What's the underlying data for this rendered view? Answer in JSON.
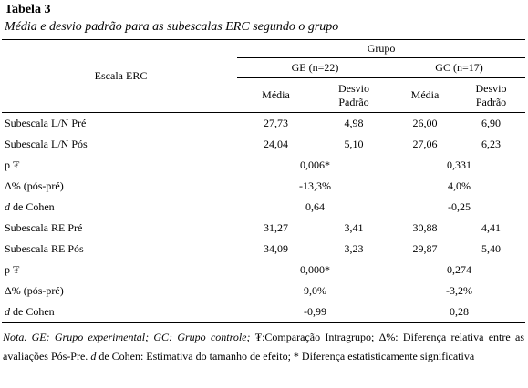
{
  "title": "Tabela 3",
  "subtitle": "Média e desvio padrão para as subescalas ERC segundo o grupo",
  "header": {
    "scale": "Escala ERC",
    "group": "Grupo",
    "ge": "GE (n=22)",
    "gc": "GC (n=17)",
    "mean": "Média",
    "sd": "Desvio Padrão"
  },
  "rows": [
    {
      "label": "Subescala L/N Pré",
      "cells": [
        "27,73",
        "4,98",
        "26,00",
        "6,90"
      ]
    },
    {
      "label": "Subescala L/N Pós",
      "cells": [
        "24,04",
        "5,10",
        "27,06",
        "6,23"
      ]
    },
    {
      "label": "p ₮",
      "merged": [
        "0,006*",
        "0,331"
      ]
    },
    {
      "label": "Δ% (pós-pré)",
      "merged": [
        "-13,3%",
        "4,0%"
      ]
    },
    {
      "label_italic": "d",
      "label": "de Cohen",
      "merged": [
        "0,64",
        "-0,25"
      ]
    },
    {
      "label": "Subescala RE Pré",
      "cells": [
        "31,27",
        "3,41",
        "30,88",
        "4,41"
      ]
    },
    {
      "label": "Subescala RE Pós",
      "cells": [
        "34,09",
        "3,23",
        "29,87",
        "5,40"
      ]
    },
    {
      "label": "p ₮",
      "merged": [
        "0,000*",
        "0,274"
      ]
    },
    {
      "label": "Δ% (pós-pré)",
      "merged": [
        "9,0%",
        "-3,2%"
      ]
    },
    {
      "label_italic": "d",
      "label": "de Cohen",
      "merged": [
        "-0,99",
        "0,28"
      ]
    }
  ],
  "note": [
    {
      "text": "Nota. GE: Grupo experimental; GC: Grupo controle; ",
      "italic": true
    },
    {
      "text": "₮:Comparação Intragrupo; Δ%: Diferença relativa entre as avaliações Pós-Pre. ",
      "italic": false
    },
    {
      "text": "d",
      "italic": true
    },
    {
      "text": " de Cohen: Estimativa do tamanho de efeito; * Diferença estatisticamente significativa",
      "italic": false
    }
  ]
}
